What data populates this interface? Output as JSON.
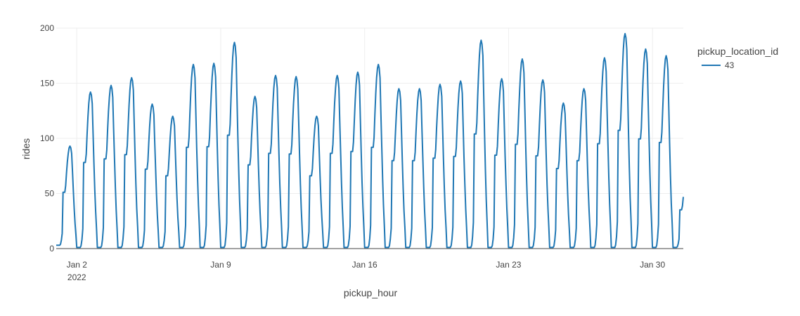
{
  "chart_data": {
    "type": "line",
    "title": "",
    "xlabel": "pickup_hour",
    "ylabel": "rides",
    "x_range": [
      "2022-01-01 00:00",
      "2022-01-31 12:00"
    ],
    "ylim": [
      0,
      200
    ],
    "y_ticks": [
      0,
      50,
      100,
      150,
      200
    ],
    "x_ticks": [
      {
        "value": "2022-01-02",
        "label": "Jan 2",
        "sublabel": "2022"
      },
      {
        "value": "2022-01-09",
        "label": "Jan 9",
        "sublabel": ""
      },
      {
        "value": "2022-01-16",
        "label": "Jan 16",
        "sublabel": ""
      },
      {
        "value": "2022-01-23",
        "label": "Jan 23",
        "sublabel": ""
      },
      {
        "value": "2022-01-30",
        "label": "Jan 30",
        "sublabel": ""
      }
    ],
    "grid": true,
    "legend_title": "pickup_location_id",
    "legend_position": "top-right",
    "series": [
      {
        "name": "43",
        "color": "#1f77b4",
        "daily": [
          {
            "date": "2022-01-01",
            "low": 3,
            "peak": 93
          },
          {
            "date": "2022-01-02",
            "low": 1,
            "peak": 142
          },
          {
            "date": "2022-01-03",
            "low": 1,
            "peak": 148
          },
          {
            "date": "2022-01-04",
            "low": 1,
            "peak": 155
          },
          {
            "date": "2022-01-05",
            "low": 1,
            "peak": 131
          },
          {
            "date": "2022-01-06",
            "low": 1,
            "peak": 120
          },
          {
            "date": "2022-01-07",
            "low": 1,
            "peak": 167
          },
          {
            "date": "2022-01-08",
            "low": 1,
            "peak": 168
          },
          {
            "date": "2022-01-09",
            "low": 1,
            "peak": 187
          },
          {
            "date": "2022-01-10",
            "low": 1,
            "peak": 138
          },
          {
            "date": "2022-01-11",
            "low": 1,
            "peak": 157
          },
          {
            "date": "2022-01-12",
            "low": 1,
            "peak": 156
          },
          {
            "date": "2022-01-13",
            "low": 1,
            "peak": 120
          },
          {
            "date": "2022-01-14",
            "low": 1,
            "peak": 157
          },
          {
            "date": "2022-01-15",
            "low": 1,
            "peak": 160
          },
          {
            "date": "2022-01-16",
            "low": 1,
            "peak": 167
          },
          {
            "date": "2022-01-17",
            "low": 1,
            "peak": 145
          },
          {
            "date": "2022-01-18",
            "low": 1,
            "peak": 145
          },
          {
            "date": "2022-01-19",
            "low": 1,
            "peak": 149
          },
          {
            "date": "2022-01-20",
            "low": 1,
            "peak": 152
          },
          {
            "date": "2022-01-21",
            "low": 1,
            "peak": 189
          },
          {
            "date": "2022-01-22",
            "low": 1,
            "peak": 154
          },
          {
            "date": "2022-01-23",
            "low": 1,
            "peak": 172
          },
          {
            "date": "2022-01-24",
            "low": 1,
            "peak": 153
          },
          {
            "date": "2022-01-25",
            "low": 1,
            "peak": 132
          },
          {
            "date": "2022-01-26",
            "low": 1,
            "peak": 145
          },
          {
            "date": "2022-01-27",
            "low": 1,
            "peak": 173
          },
          {
            "date": "2022-01-28",
            "low": 1,
            "peak": 195
          },
          {
            "date": "2022-01-29",
            "low": 1,
            "peak": 181
          },
          {
            "date": "2022-01-30",
            "low": 1,
            "peak": 175
          },
          {
            "date": "2022-01-31",
            "low": 1,
            "peak": 64
          }
        ]
      }
    ]
  }
}
